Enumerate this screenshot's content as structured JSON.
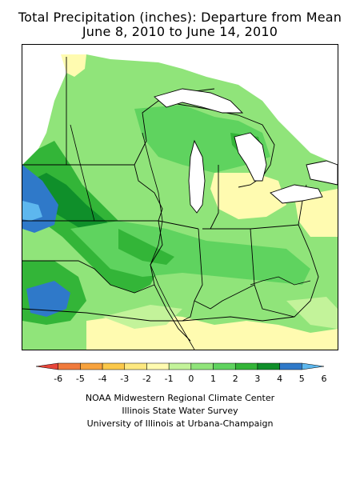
{
  "title": {
    "line1": "Total Precipitation (inches): Departure from Mean",
    "line2": "June 8, 2010 to June 14, 2010"
  },
  "legend": {
    "labels": [
      "-6",
      "-5",
      "-4",
      "-3",
      "-2",
      "-1",
      "0",
      "1",
      "2",
      "3",
      "4",
      "5",
      "6"
    ],
    "colors": [
      "#e8453a",
      "#f07a3c",
      "#f7a23d",
      "#fbc84a",
      "#fde880",
      "#fffbb0",
      "#c3f39a",
      "#90e47a",
      "#5fd35f",
      "#33b538",
      "#0f8f2a",
      "#2f79c9",
      "#5db7ee"
    ]
  },
  "credits": {
    "line1": "NOAA Midwestern Regional Climate Center",
    "line2": "Illinois State Water Survey",
    "line3": "University of Illinois at Urbana-Champaign"
  }
}
